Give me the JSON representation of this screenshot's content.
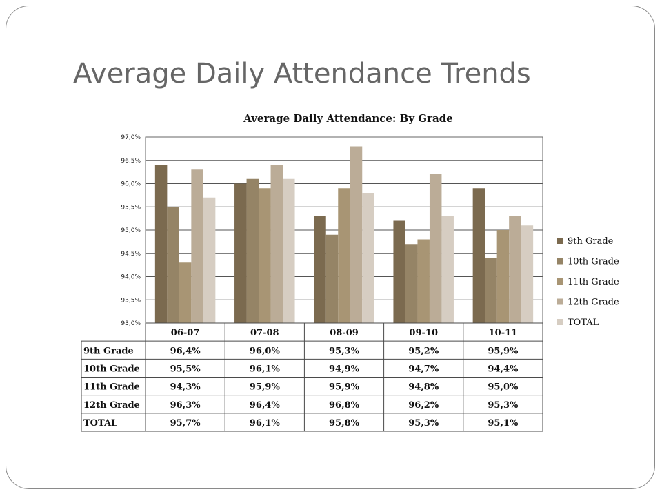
{
  "slide": {
    "title": "Average Daily Attendance Trends"
  },
  "colors": [
    "#7b6a4f",
    "#958466",
    "#a89574",
    "#bbac97",
    "#d6cdc2"
  ],
  "chart_data": {
    "type": "bar",
    "title": "Average Daily Attendance: By Grade",
    "xlabel": "",
    "ylabel": "",
    "categories": [
      "06-07",
      "07-08",
      "08-09",
      "09-10",
      "10-11"
    ],
    "ylim": [
      93.0,
      97.0
    ],
    "yticks": [
      93.0,
      93.5,
      94.0,
      94.5,
      95.0,
      95.5,
      96.0,
      96.5,
      97.0
    ],
    "ytick_labels": [
      "93,0%",
      "93,5%",
      "94,0%",
      "94,5%",
      "95,0%",
      "95,5%",
      "96,0%",
      "96,5%",
      "97,0%"
    ],
    "grid": true,
    "legend_position": "right",
    "series": [
      {
        "name": "9th Grade",
        "values": [
          96.4,
          96.0,
          95.3,
          95.2,
          95.9
        ],
        "labels": [
          "96,4%",
          "96,0%",
          "95,3%",
          "95,2%",
          "95,9%"
        ]
      },
      {
        "name": "10th Grade",
        "values": [
          95.5,
          96.1,
          94.9,
          94.7,
          94.4
        ],
        "labels": [
          "95,5%",
          "96,1%",
          "94,9%",
          "94,7%",
          "94,4%"
        ]
      },
      {
        "name": "11th Grade",
        "values": [
          94.3,
          95.9,
          95.9,
          94.8,
          95.0
        ],
        "labels": [
          "94,3%",
          "95,9%",
          "95,9%",
          "94,8%",
          "95,0%"
        ]
      },
      {
        "name": "12th Grade",
        "values": [
          96.3,
          96.4,
          96.8,
          96.2,
          95.3
        ],
        "labels": [
          "96,3%",
          "96,4%",
          "96,8%",
          "96,2%",
          "95,3%"
        ]
      },
      {
        "name": "TOTAL",
        "values": [
          95.7,
          96.1,
          95.8,
          95.3,
          95.1
        ],
        "labels": [
          "95,7%",
          "96,1%",
          "95,8%",
          "95,3%",
          "95,1%"
        ]
      }
    ]
  }
}
